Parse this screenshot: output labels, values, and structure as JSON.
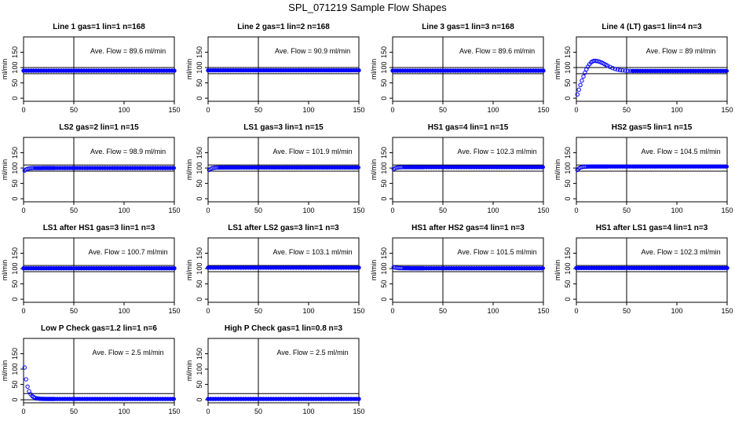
{
  "figure": {
    "title": "SPL_071219  Sample Flow Shapes"
  },
  "chart_data": [
    {
      "type": "scatter",
      "title": "Line 1 gas=1 lin=1 n=168",
      "ylabel": "ml/min",
      "xticks": [
        "0",
        "50",
        "100",
        "150"
      ],
      "yticks": [
        "0",
        "50",
        "100",
        "150"
      ],
      "xlim": [
        0,
        150
      ],
      "ylim": [
        -10,
        200
      ],
      "annotation": "Ave. Flow =  89.6  ml/min",
      "vline_x": 50,
      "hlines": [
        80,
        100
      ],
      "shape": {
        "kind": "flat",
        "level": 90
      }
    },
    {
      "type": "scatter",
      "title": "Line 2 gas=1 lin=2 n=168",
      "ylabel": "ml/min",
      "xticks": [
        "0",
        "50",
        "100",
        "150"
      ],
      "yticks": [
        "0",
        "50",
        "100",
        "150"
      ],
      "xlim": [
        0,
        150
      ],
      "ylim": [
        -10,
        200
      ],
      "annotation": "Ave. Flow =  90.9  ml/min",
      "vline_x": 50,
      "hlines": [
        80,
        100
      ],
      "shape": {
        "kind": "flat",
        "level": 91
      }
    },
    {
      "type": "scatter",
      "title": "Line 3 gas=1 lin=3 n=168",
      "ylabel": "ml/min",
      "xticks": [
        "0",
        "50",
        "100",
        "150"
      ],
      "yticks": [
        "0",
        "50",
        "100",
        "150"
      ],
      "xlim": [
        0,
        150
      ],
      "ylim": [
        -10,
        200
      ],
      "annotation": "Ave. Flow =  89.6  ml/min",
      "vline_x": 50,
      "hlines": [
        80,
        100
      ],
      "shape": {
        "kind": "flat",
        "level": 90
      }
    },
    {
      "type": "scatter",
      "title": "Line 4 (LT) gas=1 lin=4 n=3",
      "ylabel": "ml/min",
      "xticks": [
        "0",
        "50",
        "100",
        "150"
      ],
      "yticks": [
        "0",
        "50",
        "100",
        "150"
      ],
      "xlim": [
        0,
        150
      ],
      "ylim": [
        -10,
        200
      ],
      "annotation": "Ave. Flow =  89  ml/min",
      "vline_x": 50,
      "hlines": [
        80,
        100
      ],
      "shape": {
        "kind": "overshoot",
        "level": 89,
        "start": 2,
        "peak": 122,
        "peak_x": 18
      }
    },
    {
      "type": "scatter",
      "title": "LS2 gas=2 lin=1 n=15",
      "ylabel": "ml/min",
      "xticks": [
        "0",
        "50",
        "100",
        "150"
      ],
      "yticks": [
        "0",
        "50",
        "100",
        "150"
      ],
      "xlim": [
        0,
        150
      ],
      "ylim": [
        -10,
        200
      ],
      "annotation": "Ave. Flow =  98.9  ml/min",
      "vline_x": 50,
      "hlines": [
        90,
        110
      ],
      "shape": {
        "kind": "rise",
        "level": 100,
        "start": 88
      }
    },
    {
      "type": "scatter",
      "title": "LS1 gas=3 lin=1 n=15",
      "ylabel": "ml/min",
      "xticks": [
        "0",
        "50",
        "100",
        "150"
      ],
      "yticks": [
        "0",
        "50",
        "100",
        "150"
      ],
      "xlim": [
        0,
        150
      ],
      "ylim": [
        -10,
        200
      ],
      "annotation": "Ave. Flow =  101.9  ml/min",
      "vline_x": 50,
      "hlines": [
        90,
        110
      ],
      "shape": {
        "kind": "rise",
        "level": 102,
        "start": 90
      }
    },
    {
      "type": "scatter",
      "title": "HS1 gas=4 lin=1 n=15",
      "ylabel": "ml/min",
      "xticks": [
        "0",
        "50",
        "100",
        "150"
      ],
      "yticks": [
        "0",
        "50",
        "100",
        "150"
      ],
      "xlim": [
        0,
        150
      ],
      "ylim": [
        -10,
        200
      ],
      "annotation": "Ave. Flow =  102.3  ml/min",
      "vline_x": 50,
      "hlines": [
        90,
        110
      ],
      "shape": {
        "kind": "rise",
        "level": 103,
        "start": 94
      }
    },
    {
      "type": "scatter",
      "title": "HS2 gas=5 lin=1 n=15",
      "ylabel": "ml/min",
      "xticks": [
        "0",
        "50",
        "100",
        "150"
      ],
      "yticks": [
        "0",
        "50",
        "100",
        "150"
      ],
      "xlim": [
        0,
        150
      ],
      "ylim": [
        -10,
        200
      ],
      "annotation": "Ave. Flow =  104.5  ml/min",
      "vline_x": 50,
      "hlines": [
        90,
        110
      ],
      "shape": {
        "kind": "rise",
        "level": 105,
        "start": 88
      }
    },
    {
      "type": "scatter",
      "title": "LS1 after HS1 gas=3 lin=1 n=3",
      "ylabel": "ml/min",
      "xticks": [
        "0",
        "50",
        "100",
        "150"
      ],
      "yticks": [
        "0",
        "50",
        "100",
        "150"
      ],
      "xlim": [
        0,
        150
      ],
      "ylim": [
        -10,
        200
      ],
      "annotation": "Ave. Flow =  100.7  ml/min",
      "vline_x": 50,
      "hlines": [
        90,
        110
      ],
      "shape": {
        "kind": "flat",
        "level": 101
      }
    },
    {
      "type": "scatter",
      "title": "LS1 after LS2 gas=3 lin=1 n=3",
      "ylabel": "ml/min",
      "xticks": [
        "0",
        "50",
        "100",
        "150"
      ],
      "yticks": [
        "0",
        "50",
        "100",
        "150"
      ],
      "xlim": [
        0,
        150
      ],
      "ylim": [
        -10,
        200
      ],
      "annotation": "Ave. Flow =  103.1  ml/min",
      "vline_x": 50,
      "hlines": [
        90,
        110
      ],
      "shape": {
        "kind": "flat",
        "level": 103
      }
    },
    {
      "type": "scatter",
      "title": "HS1 after HS2 gas=4 lin=1 n=3",
      "ylabel": "ml/min",
      "xticks": [
        "0",
        "50",
        "100",
        "150"
      ],
      "yticks": [
        "0",
        "50",
        "100",
        "150"
      ],
      "xlim": [
        0,
        150
      ],
      "ylim": [
        -10,
        200
      ],
      "annotation": "Ave. Flow =  101.5  ml/min",
      "vline_x": 50,
      "hlines": [
        90,
        110
      ],
      "shape": {
        "kind": "fall",
        "level": 101,
        "start": 106
      }
    },
    {
      "type": "scatter",
      "title": "HS1 after LS1 gas=4 lin=1 n=3",
      "ylabel": "ml/min",
      "xticks": [
        "0",
        "50",
        "100",
        "150"
      ],
      "yticks": [
        "0",
        "50",
        "100",
        "150"
      ],
      "xlim": [
        0,
        150
      ],
      "ylim": [
        -10,
        200
      ],
      "annotation": "Ave. Flow =  102.3  ml/min",
      "vline_x": 50,
      "hlines": [
        90,
        110
      ],
      "shape": {
        "kind": "flat",
        "level": 102
      }
    },
    {
      "type": "scatter",
      "title": "Low P Check gas=1.2 lin=1 n=6",
      "ylabel": "ml/min",
      "xticks": [
        "0",
        "50",
        "100",
        "150"
      ],
      "yticks": [
        "0",
        "50",
        "100",
        "150"
      ],
      "xlim": [
        0,
        150
      ],
      "ylim": [
        -10,
        200
      ],
      "annotation": "Ave. Flow =  2.5  ml/min",
      "vline_x": 50,
      "hlines": [
        0,
        20
      ],
      "shape": {
        "kind": "decay",
        "level": 2.5,
        "start": 105
      }
    },
    {
      "type": "scatter",
      "title": "High P Check gas=1 lin=0.8 n=3",
      "ylabel": "ml/min",
      "xticks": [
        "0",
        "50",
        "100",
        "150"
      ],
      "yticks": [
        "0",
        "50",
        "100",
        "150"
      ],
      "xlim": [
        0,
        150
      ],
      "ylim": [
        -10,
        200
      ],
      "annotation": "Ave. Flow =  2.5  ml/min",
      "vline_x": 50,
      "hlines": [
        0,
        20
      ],
      "shape": {
        "kind": "flat",
        "level": 2.5
      }
    }
  ],
  "style": {
    "point_color": "#0000ff",
    "axis_color": "#000000",
    "background": "#ffffff"
  }
}
